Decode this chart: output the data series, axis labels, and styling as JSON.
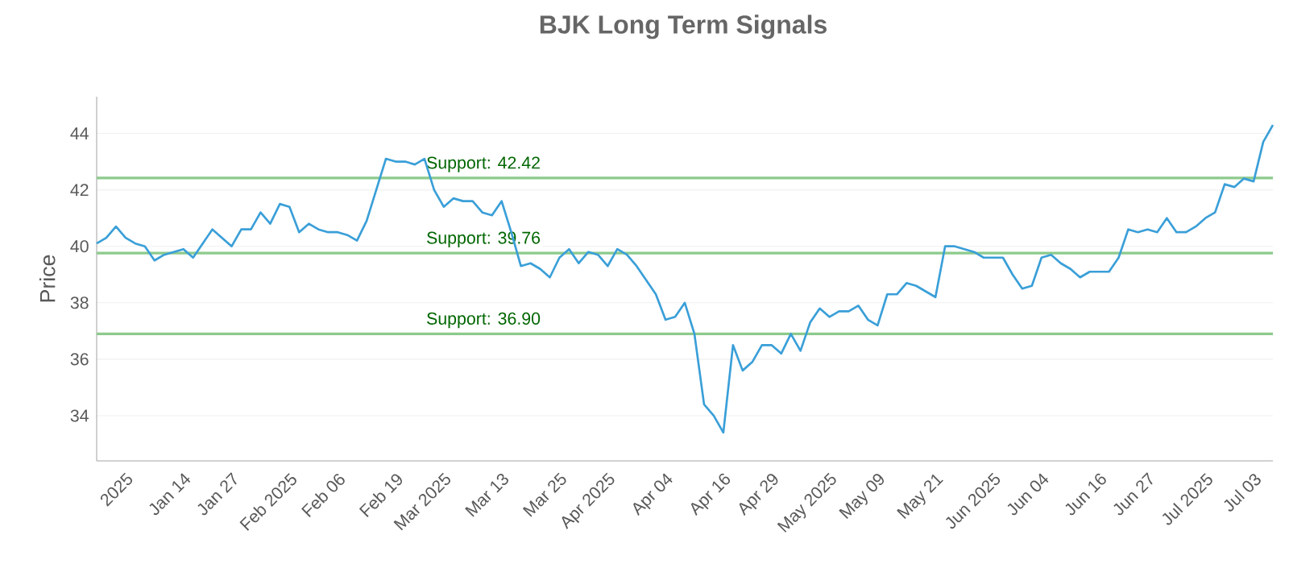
{
  "chart_data": {
    "type": "line",
    "title": "BJK Long Term Signals",
    "ylabel": "Price",
    "categories": [
      null,
      null,
      null,
      "2025",
      null,
      null,
      null,
      null,
      null,
      "Jan 14",
      null,
      null,
      null,
      null,
      "Jan 27",
      null,
      null,
      null,
      null,
      null,
      "Feb 2025",
      null,
      null,
      null,
      null,
      "Feb 06",
      null,
      null,
      null,
      null,
      null,
      "Feb 19",
      null,
      null,
      null,
      null,
      "Mar 2025",
      null,
      null,
      null,
      null,
      null,
      "Mar 13",
      null,
      null,
      null,
      null,
      null,
      "Mar 25",
      null,
      null,
      null,
      null,
      "Apr 2025",
      null,
      null,
      null,
      null,
      null,
      "Apr 04",
      null,
      null,
      null,
      null,
      null,
      "Apr 16",
      null,
      null,
      null,
      null,
      "Apr 29",
      null,
      null,
      null,
      null,
      null,
      "May 2025",
      null,
      null,
      null,
      null,
      "May 09",
      null,
      null,
      null,
      null,
      null,
      "May 21",
      null,
      null,
      null,
      null,
      null,
      "Jun 2025",
      null,
      null,
      null,
      null,
      "Jun 04",
      null,
      null,
      null,
      null,
      null,
      "Jun 16",
      null,
      null,
      null,
      null,
      "Jun 27",
      null,
      null,
      null,
      null,
      null,
      "Jul 2025",
      null,
      null,
      null,
      null,
      "Jul 03",
      null,
      null
    ],
    "series": [
      {
        "color": "#3a9fd8",
        "values": [
          40.1,
          40.3,
          40.7,
          40.3,
          40.1,
          40.0,
          39.5,
          39.7,
          39.8,
          39.9,
          39.6,
          40.1,
          40.6,
          40.3,
          40.0,
          40.6,
          40.6,
          41.2,
          40.8,
          41.5,
          41.4,
          40.5,
          40.8,
          40.6,
          40.5,
          40.5,
          40.4,
          40.2,
          40.9,
          42.0,
          43.1,
          43.0,
          43.0,
          42.9,
          43.1,
          42.0,
          41.4,
          41.7,
          41.6,
          41.6,
          41.2,
          41.1,
          41.6,
          40.5,
          39.3,
          39.4,
          39.2,
          38.9,
          39.6,
          39.9,
          39.4,
          39.8,
          39.7,
          39.3,
          39.9,
          39.7,
          39.3,
          38.8,
          38.3,
          37.4,
          37.5,
          38.0,
          36.9,
          34.4,
          34.0,
          33.4,
          36.5,
          35.6,
          35.9,
          36.5,
          36.5,
          36.2,
          36.9,
          36.3,
          37.3,
          37.8,
          37.5,
          37.7,
          37.7,
          37.9,
          37.4,
          37.2,
          38.3,
          38.3,
          38.7,
          38.6,
          38.4,
          38.2,
          40.0,
          40.0,
          39.9,
          39.8,
          39.6,
          39.6,
          39.6,
          39.0,
          38.5,
          38.6,
          39.6,
          39.7,
          39.4,
          39.2,
          38.9,
          39.1,
          39.1,
          39.1,
          39.6,
          40.6,
          40.5,
          40.6,
          40.5,
          41.0,
          40.5,
          40.5,
          40.7,
          41.0,
          41.2,
          42.2,
          42.1,
          42.4,
          42.3,
          43.7,
          44.3
        ]
      }
    ],
    "ylim": [
      32.4,
      45.3
    ],
    "yticks": [
      34,
      36,
      38,
      40,
      42,
      44
    ],
    "grid": "y",
    "marker": "none",
    "line_style": "solid",
    "ref_lines": [
      {
        "axis": "y",
        "value": 42.42,
        "label": "Support: 42.42",
        "color": "#8cca8c"
      },
      {
        "axis": "y",
        "value": 39.76,
        "label": "Support: 39.76",
        "color": "#8cca8c"
      },
      {
        "axis": "y",
        "value": 36.9,
        "label": "Support: 36.90",
        "color": "#8cca8c"
      }
    ]
  }
}
